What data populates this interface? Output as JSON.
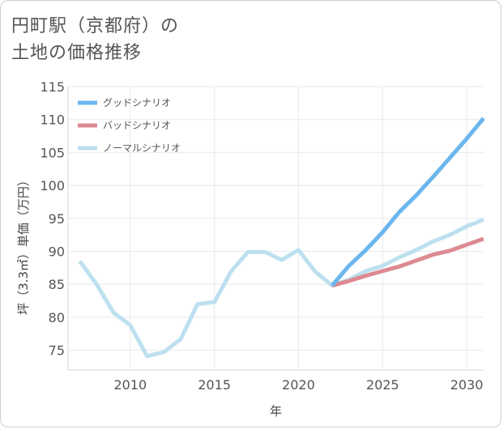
{
  "chart_data": {
    "type": "line",
    "title_line1": "円町駅（京都府）の",
    "title_line2": "土地の価格推移",
    "xlabel": "年",
    "ylabel": "坪（3.3㎡）単価（万円）",
    "xlim": [
      2006.3,
      2031
    ],
    "ylim": [
      72,
      115
    ],
    "x_ticks": [
      2010,
      2015,
      2020,
      2025,
      2030
    ],
    "y_ticks": [
      75,
      80,
      85,
      90,
      95,
      100,
      105,
      110,
      115
    ],
    "legend": {
      "position": "top-left"
    },
    "series": [
      {
        "name": "グッドシナリオ",
        "color": "#6cb6ee",
        "x": [
          2022,
          2023,
          2024,
          2025,
          2026,
          2027,
          2028,
          2029,
          2030,
          2031
        ],
        "y": [
          84.8,
          87.8,
          90.2,
          92.9,
          96.0,
          98.5,
          101.3,
          104.2,
          107.1,
          110.2
        ]
      },
      {
        "name": "バッドシナリオ",
        "color": "#dd8a92",
        "x": [
          2022,
          2023,
          2024,
          2025,
          2026,
          2027,
          2028,
          2029,
          2030,
          2031
        ],
        "y": [
          84.8,
          85.5,
          86.3,
          87.0,
          87.7,
          88.6,
          89.5,
          90.1,
          91.0,
          91.9
        ]
      },
      {
        "name": "ノーマルシナリオ",
        "color": "#bde0ef",
        "x": [
          2007,
          2008,
          2009,
          2010,
          2011,
          2012,
          2013,
          2014,
          2015,
          2016,
          2017,
          2018,
          2019,
          2020,
          2021,
          2022,
          2023,
          2024,
          2025,
          2026,
          2027,
          2028,
          2029,
          2030,
          2031
        ],
        "y": [
          88.5,
          85.0,
          80.7,
          78.8,
          74.1,
          74.7,
          76.7,
          82.0,
          82.3,
          87.0,
          89.9,
          89.9,
          88.7,
          90.2,
          86.9,
          84.8,
          85.7,
          87.0,
          87.8,
          89.1,
          90.2,
          91.5,
          92.5,
          93.8,
          94.8
        ]
      }
    ]
  }
}
